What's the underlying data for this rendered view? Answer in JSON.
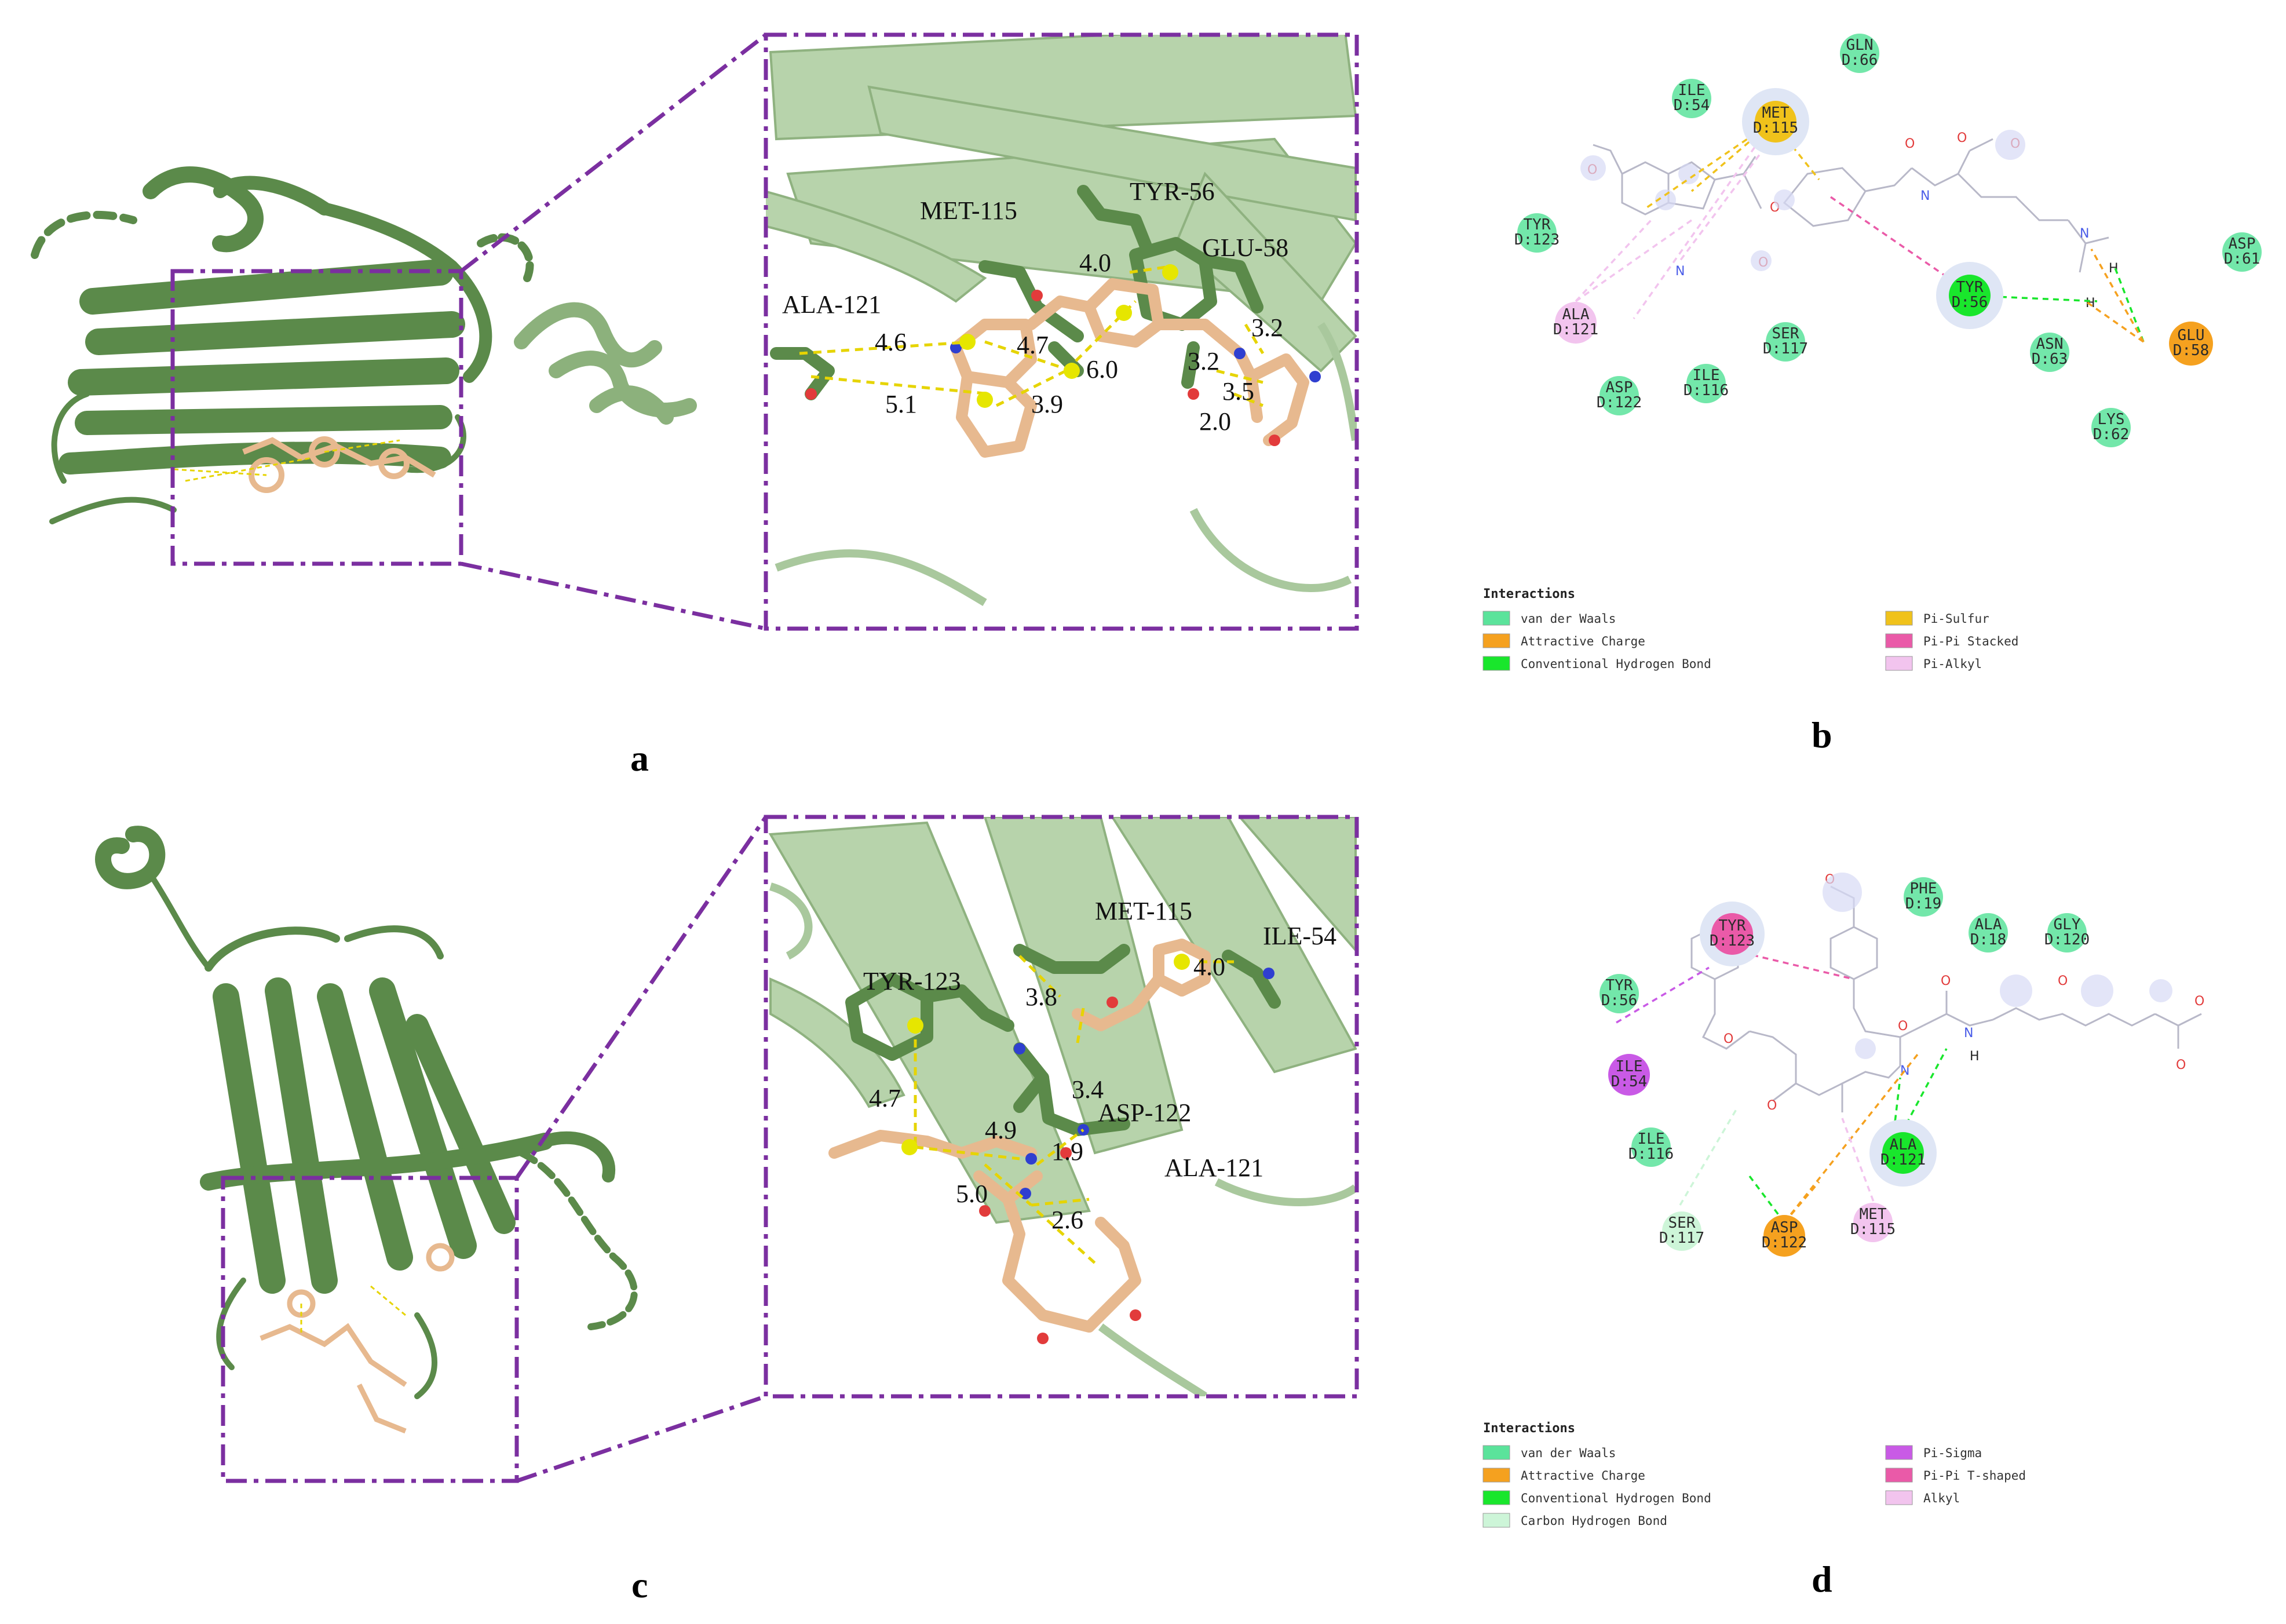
{
  "panels": {
    "a": {
      "label": "a",
      "residues": [
        "MET-115",
        "TYR-56",
        "GLU-58",
        "ALA-121"
      ],
      "distances": [
        "4.0",
        "4.6",
        "4.7",
        "6.0",
        "5.1",
        "3.9",
        "3.2",
        "3.2",
        "3.5",
        "2.0"
      ]
    },
    "b": {
      "label": "b",
      "residues": [
        {
          "name": "GLN",
          "chain": "D:66",
          "type": "vdw"
        },
        {
          "name": "ILE",
          "chain": "D:54",
          "type": "vdw"
        },
        {
          "name": "MET",
          "chain": "D:115",
          "type": "pisulfur"
        },
        {
          "name": "TYR",
          "chain": "D:123",
          "type": "vdw"
        },
        {
          "name": "ASP",
          "chain": "D:61",
          "type": "vdw"
        },
        {
          "name": "ALA",
          "chain": "D:121",
          "type": "alkyl"
        },
        {
          "name": "SER",
          "chain": "D:117",
          "type": "vdw"
        },
        {
          "name": "TYR",
          "chain": "D:56",
          "type": "hbond"
        },
        {
          "name": "ASN",
          "chain": "D:63",
          "type": "vdw"
        },
        {
          "name": "GLU",
          "chain": "D:58",
          "type": "charge"
        },
        {
          "name": "ASP",
          "chain": "D:122",
          "type": "vdw"
        },
        {
          "name": "ILE",
          "chain": "D:116",
          "type": "vdw"
        },
        {
          "name": "LYS",
          "chain": "D:62",
          "type": "vdw"
        }
      ],
      "legend_title": "Interactions",
      "legend": [
        {
          "label": "van der Waals",
          "color": "#5be39b"
        },
        {
          "label": "Attractive Charge",
          "color": "#f5a11f"
        },
        {
          "label": "Conventional Hydrogen Bond",
          "color": "#19e62c"
        },
        {
          "label": "Pi-Sulfur",
          "color": "#f0c21b"
        },
        {
          "label": "Pi-Pi Stacked",
          "color": "#ea5aa8"
        },
        {
          "label": "Pi-Alkyl",
          "color": "#f2c4ee"
        }
      ]
    },
    "c": {
      "label": "c",
      "residues": [
        "MET-115",
        "ILE-54",
        "TYR-123",
        "ASP-122",
        "ALA-121"
      ],
      "distances": [
        "3.8",
        "4.0",
        "3.4",
        "4.7",
        "4.9",
        "1.9",
        "5.0",
        "2.6"
      ]
    },
    "d": {
      "label": "d",
      "residues": [
        {
          "name": "PHE",
          "chain": "D:19",
          "type": "vdw"
        },
        {
          "name": "TYR",
          "chain": "D:123",
          "type": "tshaped"
        },
        {
          "name": "ALA",
          "chain": "D:18",
          "type": "vdw"
        },
        {
          "name": "GLY",
          "chain": "D:120",
          "type": "vdw"
        },
        {
          "name": "TYR",
          "chain": "D:56",
          "type": "vdw"
        },
        {
          "name": "ILE",
          "chain": "D:54",
          "type": "pisigma"
        },
        {
          "name": "ILE",
          "chain": "D:116",
          "type": "vdw"
        },
        {
          "name": "ALA",
          "chain": "D:121",
          "type": "hbond"
        },
        {
          "name": "SER",
          "chain": "D:117",
          "type": "carbonh"
        },
        {
          "name": "ASP",
          "chain": "D:122",
          "type": "charge"
        },
        {
          "name": "MET",
          "chain": "D:115",
          "type": "alkyl"
        }
      ],
      "legend_title": "Interactions",
      "legend": [
        {
          "label": "van der Waals",
          "color": "#5be39b"
        },
        {
          "label": "Attractive Charge",
          "color": "#f5a11f"
        },
        {
          "label": "Conventional Hydrogen Bond",
          "color": "#19e62c"
        },
        {
          "label": "Carbon Hydrogen Bond",
          "color": "#cdf5d8"
        },
        {
          "label": "Pi-Sigma",
          "color": "#c95ae6"
        },
        {
          "label": "Pi-Pi T-shaped",
          "color": "#ea5aa8"
        },
        {
          "label": "Alkyl",
          "color": "#f2c4ee"
        }
      ]
    }
  },
  "colors": {
    "protein_dark": "#5b8a4a",
    "protein_light": "#a9c89d",
    "ligand": "#e7b98f",
    "box": "#7b2fa0",
    "interaction": "#e6d400"
  }
}
